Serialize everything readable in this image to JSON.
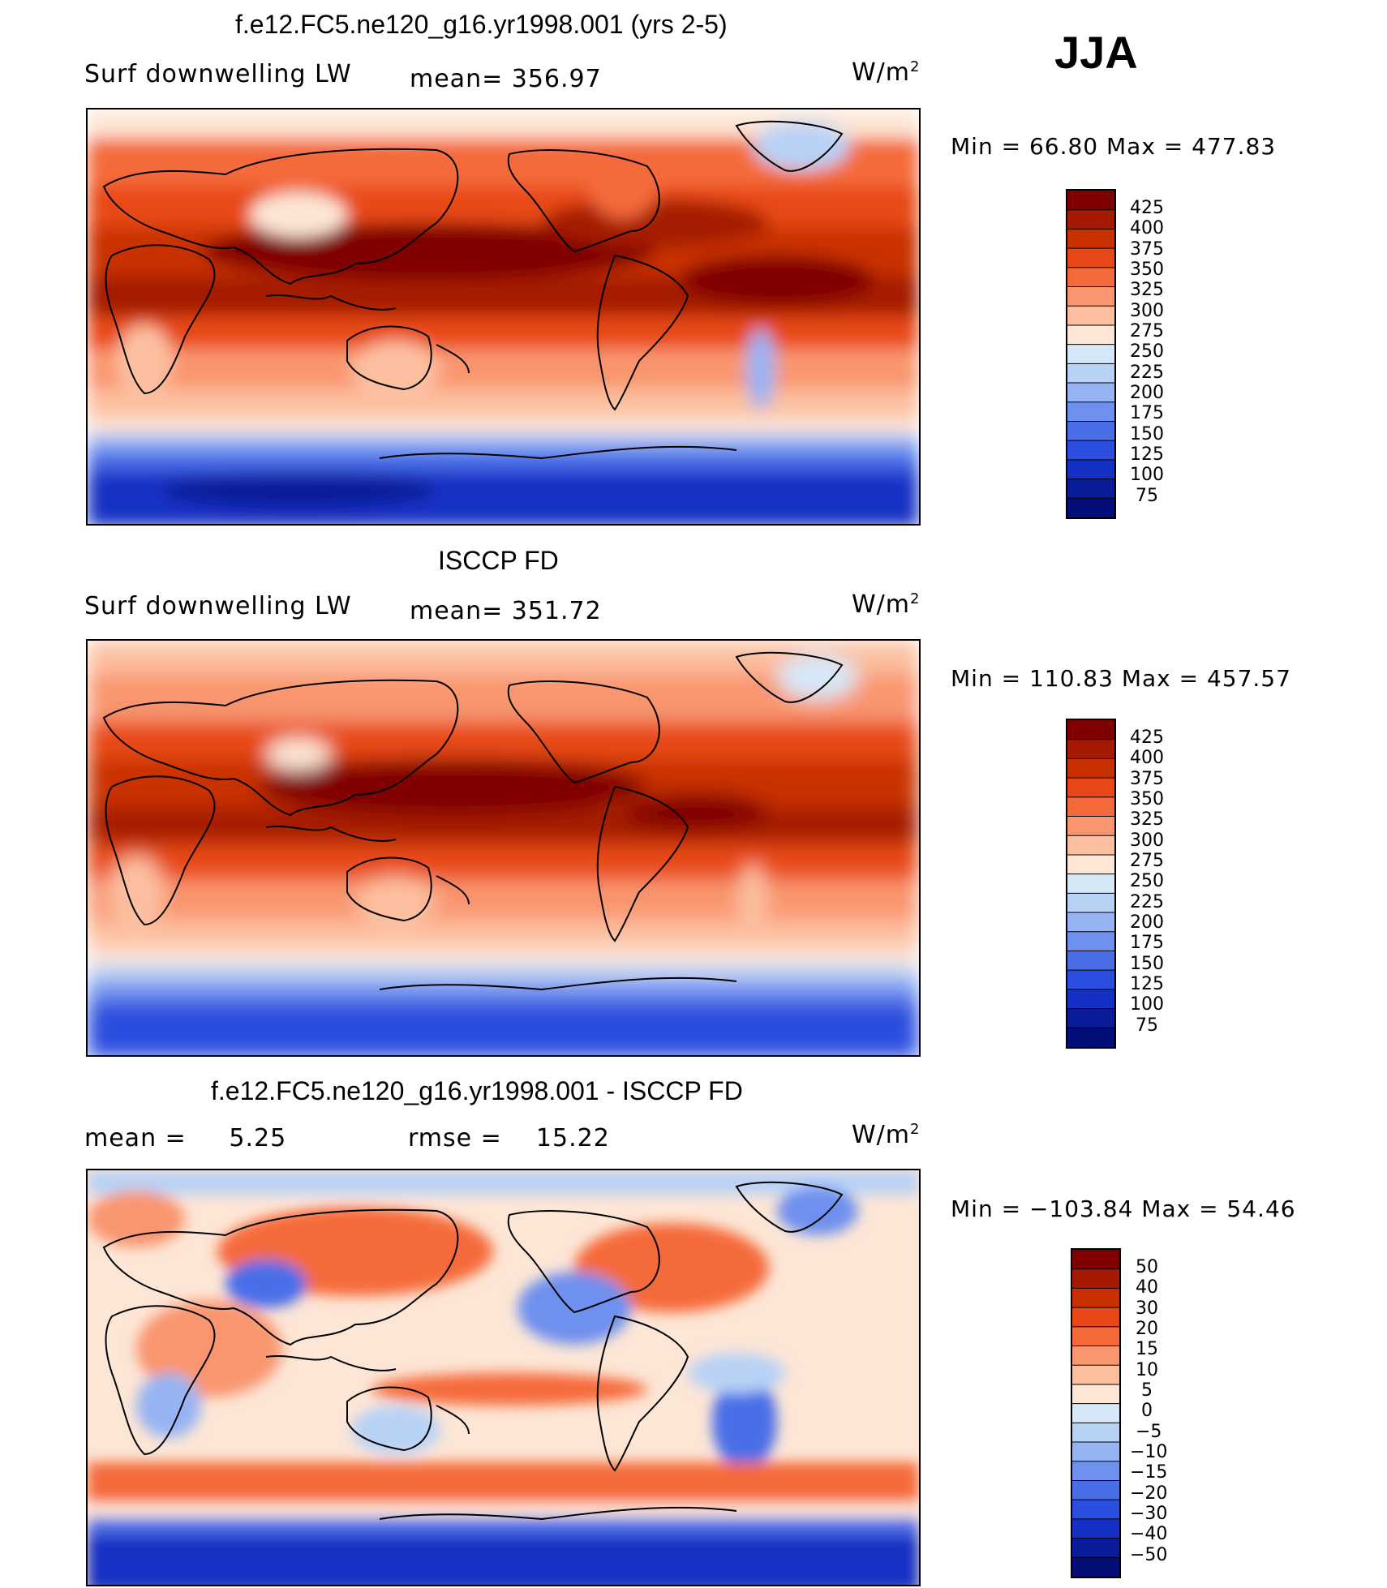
{
  "season": "JJA",
  "units": "W/m",
  "units_exp": "2",
  "panels": [
    {
      "title": "f.e12.FC5.ne120_g16.yr1998.001 (yrs 2-5)",
      "left_label": "Surf downwelling LW",
      "center_label": "mean= 356.97",
      "min_max": "Min =   66.80 Max = 477.83",
      "colorbar_labels": [
        "425",
        "400",
        "375",
        "350",
        "325",
        "300",
        "275",
        "250",
        "225",
        "200",
        "175",
        "150",
        "125",
        "100",
        "75"
      ]
    },
    {
      "title": "ISCCP FD",
      "left_label": "Surf downwelling LW",
      "center_label": "mean= 351.72",
      "min_max": "Min = 110.83 Max = 457.57",
      "colorbar_labels": [
        "425",
        "400",
        "375",
        "350",
        "325",
        "300",
        "275",
        "250",
        "225",
        "200",
        "175",
        "150",
        "125",
        "100",
        "75"
      ]
    },
    {
      "title": "f.e12.FC5.ne120_g16.yr1998.001 - ISCCP FD",
      "left_label": "mean =     5.25",
      "center_label": "rmse =    15.22",
      "min_max": "Min = −103.84 Max =   54.46",
      "colorbar_labels": [
        "50",
        "40",
        "30",
        "20",
        "15",
        "10",
        "5",
        "0",
        "−5",
        "−10",
        "−15",
        "−20",
        "−30",
        "−40",
        "−50"
      ]
    }
  ],
  "colors": {
    "scale": [
      "#800000",
      "#a51a00",
      "#c93000",
      "#e84818",
      "#f56a3a",
      "#f99670",
      "#fcc0a0",
      "#fde6d6",
      "#d6e8f8",
      "#b8d2f6",
      "#96b4f4",
      "#6e90ee",
      "#4a6ee8",
      "#2c4ede",
      "#1530c4",
      "#0a1c9a",
      "#040e78"
    ]
  }
}
